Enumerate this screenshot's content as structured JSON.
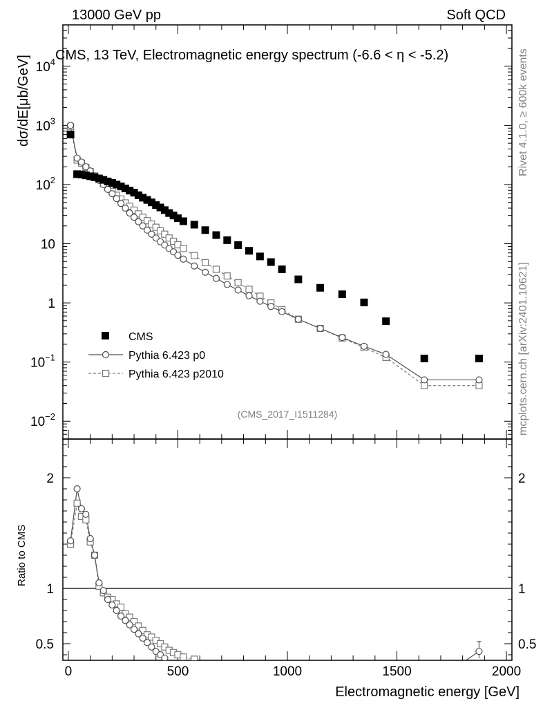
{
  "header": {
    "left": "13000 GeV pp",
    "right": "Soft QCD"
  },
  "side_labels": {
    "rivet": "Rivet 4.1.0, ≥ 600k events",
    "mcplots": "mcplots.cern.ch [arXiv:2401.10621]"
  },
  "watermark": "(CMS_2017_I1511284)",
  "colors": {
    "cms": "#000000",
    "p0": "#505050",
    "p2010": "#7a7a7a",
    "grey_text": "#808080"
  },
  "chart_data": [
    {
      "type": "scatter",
      "title": "CMS, 13 TeV, Electromagnetic energy spectrum (-6.6 < η < -5.2)",
      "xlabel": "",
      "ylabel": "dσ/dE[μb/GeV]",
      "yscale": "log",
      "xlim": [
        -25,
        2025
      ],
      "ylim": [
        0.005,
        50000
      ],
      "grid": false,
      "legend": "bottom-left",
      "ytick_labels": [
        {
          "value": 0.01,
          "base": "10",
          "exp": "−2"
        },
        {
          "value": 0.1,
          "base": "10",
          "exp": "−1"
        },
        {
          "value": 1,
          "base": "1",
          "exp": ""
        },
        {
          "value": 10,
          "base": "10",
          "exp": ""
        },
        {
          "value": 100,
          "base": "10",
          "exp": "2"
        },
        {
          "value": 1000,
          "base": "10",
          "exp": "3"
        },
        {
          "value": 10000,
          "base": "10",
          "exp": "4"
        }
      ],
      "series": [
        {
          "name": "CMS",
          "marker": "filled-square",
          "x": [
            10,
            40,
            60,
            80,
            100,
            120,
            140,
            160,
            180,
            200,
            220,
            240,
            260,
            280,
            300,
            320,
            340,
            360,
            380,
            400,
            420,
            440,
            460,
            480,
            500,
            525,
            575,
            625,
            675,
            725,
            775,
            825,
            875,
            925,
            975,
            1050,
            1150,
            1250,
            1350,
            1450,
            1625,
            1875
          ],
          "y": [
            700,
            150,
            148,
            143,
            138,
            133,
            127,
            120,
            113,
            107,
            100,
            93,
            86,
            79,
            73,
            66,
            60,
            55,
            50,
            45,
            41,
            37,
            33,
            30,
            27,
            24,
            21,
            17,
            14,
            11.5,
            9.5,
            7.6,
            6.1,
            4.9,
            3.7,
            2.5,
            1.8,
            1.4,
            1.02,
            0.49,
            0.115,
            0.115
          ]
        },
        {
          "name": "Pythia 6.423 p0",
          "marker": "open-circle",
          "linestyle": "solid",
          "x": [
            10,
            40,
            60,
            80,
            100,
            120,
            140,
            160,
            180,
            200,
            220,
            240,
            260,
            280,
            300,
            320,
            340,
            360,
            380,
            400,
            420,
            440,
            460,
            480,
            500,
            525,
            575,
            625,
            675,
            725,
            775,
            825,
            875,
            925,
            975,
            1050,
            1150,
            1250,
            1350,
            1450,
            1625,
            1875
          ],
          "y": [
            1000,
            280,
            240,
            200,
            170,
            140,
            118,
            100,
            83,
            70,
            58,
            48,
            40,
            33,
            28,
            23.5,
            20,
            17,
            14.5,
            12.5,
            10.8,
            9.5,
            8.3,
            7.3,
            6.4,
            5.5,
            4.2,
            3.3,
            2.6,
            2.05,
            1.65,
            1.32,
            1.07,
            0.87,
            0.71,
            0.53,
            0.37,
            0.26,
            0.185,
            0.135,
            0.05,
            0.05
          ]
        },
        {
          "name": "Pythia 6.423 p2010",
          "marker": "open-square",
          "linestyle": "dashed",
          "x": [
            10,
            40,
            60,
            80,
            100,
            120,
            140,
            160,
            180,
            200,
            220,
            240,
            260,
            280,
            300,
            320,
            340,
            360,
            380,
            400,
            420,
            440,
            460,
            480,
            500,
            525,
            575,
            625,
            675,
            725,
            775,
            825,
            875,
            925,
            975,
            1050,
            1150,
            1250,
            1350,
            1450,
            1625,
            1875
          ],
          "y": [
            950,
            260,
            230,
            195,
            165,
            140,
            122,
            104,
            90,
            77,
            66,
            57,
            49,
            43,
            37,
            32,
            28,
            24.5,
            21.5,
            19,
            16.5,
            14.5,
            12.5,
            11,
            9.6,
            8.3,
            6.3,
            4.8,
            3.7,
            2.85,
            2.2,
            1.7,
            1.3,
            1.0,
            0.77,
            0.53,
            0.37,
            0.255,
            0.175,
            0.12,
            0.04,
            0.04
          ]
        }
      ]
    },
    {
      "type": "line",
      "title": "",
      "xlabel": "Electromagnetic energy [GeV]",
      "ylabel": "Ratio to CMS",
      "xlim": [
        -25,
        2025
      ],
      "ylim": [
        0.35,
        2.35
      ],
      "reference_line": 1,
      "xtick_labels": [
        "0",
        "500",
        "1000",
        "1500",
        "2000"
      ],
      "xtick_values": [
        0,
        500,
        1000,
        1500,
        2000
      ],
      "ytick_labels": [
        "0.5",
        "1",
        "2"
      ],
      "ytick_values": [
        0.5,
        1,
        2
      ],
      "series": [
        {
          "name": "Pythia 6.423 p0",
          "marker": "open-circle",
          "x": [
            10,
            40,
            60,
            80,
            100,
            120,
            140,
            160,
            180,
            200,
            220,
            240,
            260,
            280,
            300,
            320,
            340,
            360,
            380,
            400,
            420,
            440,
            1875
          ],
          "y": [
            1.43,
            1.9,
            1.72,
            1.67,
            1.45,
            1.3,
            1.05,
            0.98,
            0.9,
            0.85,
            0.8,
            0.75,
            0.71,
            0.67,
            0.63,
            0.59,
            0.55,
            0.51,
            0.47,
            0.43,
            0.4,
            0.37,
            0.43
          ]
        },
        {
          "name": "Pythia 6.423 p2010",
          "marker": "open-square",
          "x": [
            10,
            40,
            60,
            80,
            100,
            120,
            140,
            160,
            180,
            200,
            220,
            240,
            260,
            280,
            300,
            320,
            340,
            360,
            380,
            400,
            420,
            440,
            460,
            480,
            500,
            525,
            575
          ],
          "y": [
            1.4,
            1.77,
            1.65,
            1.62,
            1.42,
            1.3,
            1.02,
            0.96,
            0.92,
            0.9,
            0.86,
            0.83,
            0.77,
            0.74,
            0.7,
            0.66,
            0.62,
            0.58,
            0.56,
            0.53,
            0.5,
            0.47,
            0.44,
            0.42,
            0.4,
            0.38,
            0.36
          ]
        }
      ],
      "errorbar_at_x": 1875,
      "errorbar_range": [
        0.37,
        0.52
      ]
    }
  ]
}
